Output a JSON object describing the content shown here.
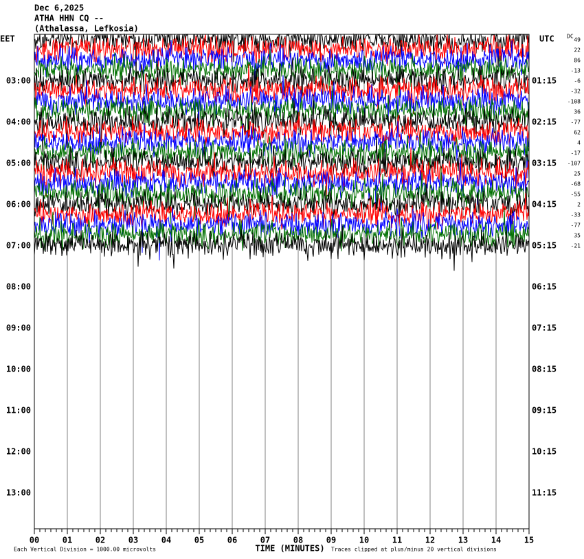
{
  "header": {
    "date": "Dec 6,2025",
    "station": "ATHA HHN CQ --",
    "location": "(Athalassa, Lefkosia)"
  },
  "chart_data": {
    "type": "helicorder",
    "left_zone": "EET",
    "right_zone": "UTC",
    "dc_label": "DC",
    "left_times": [
      "03:00",
      "04:00",
      "05:00",
      "06:00",
      "07:00",
      "08:00",
      "09:00",
      "10:00",
      "11:00",
      "12:00",
      "13:00"
    ],
    "right_times": [
      "01:15",
      "02:15",
      "03:15",
      "04:15",
      "05:15",
      "06:15",
      "07:15",
      "08:15",
      "09:15",
      "10:15",
      "11:15"
    ],
    "dc_offsets": [
      49,
      22,
      86,
      -13,
      -6,
      -32,
      -108,
      36,
      -77,
      62,
      4,
      -17,
      -107,
      25,
      -68,
      -55,
      2,
      -33,
      -77,
      35,
      -21
    ],
    "xlim": [
      0,
      15
    ],
    "xticks": [
      {
        "value": 0,
        "label": "00"
      },
      {
        "value": 1,
        "label": "01"
      },
      {
        "value": 2,
        "label": "02"
      },
      {
        "value": 3,
        "label": "03"
      },
      {
        "value": 4,
        "label": "04"
      },
      {
        "value": 5,
        "label": "05"
      },
      {
        "value": 6,
        "label": "06"
      },
      {
        "value": 7,
        "label": "07"
      },
      {
        "value": 8,
        "label": "08"
      },
      {
        "value": 9,
        "label": "09"
      },
      10,
      11,
      12,
      13,
      14,
      15
    ],
    "xlabel": "TIME (MINUTES)",
    "scale_note": "Each Vertical Division = 1000.00 microvolts",
    "clip_note": "Traces clipped at plus/minus 20 vertical divisions",
    "colors": [
      "#000000",
      "#ff0000",
      "#0000ff",
      "#007000"
    ]
  }
}
